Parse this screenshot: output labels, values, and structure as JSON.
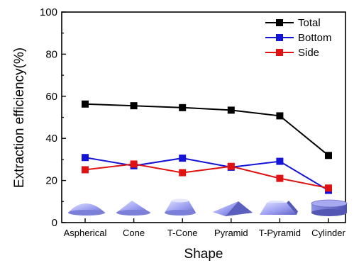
{
  "chart_data": {
    "type": "line",
    "xlabel": "Shape",
    "ylabel": "Extraction efficiency(%)",
    "ylim": [
      0,
      100
    ],
    "yticks": [
      "0",
      "20",
      "40",
      "60",
      "80",
      "100"
    ],
    "categories": [
      "Aspherical",
      "Cone",
      "T-Cone",
      "Pyramid",
      "T-Pyramid",
      "Cylinder"
    ],
    "series": [
      {
        "name": "Total",
        "color": "#000000",
        "values": [
          56.3,
          55.5,
          54.6,
          53.4,
          50.7,
          31.9
        ]
      },
      {
        "name": "Bottom",
        "color": "#1414d8",
        "values": [
          30.9,
          27.0,
          30.6,
          26.3,
          29.1,
          15.3
        ]
      },
      {
        "name": "Side",
        "color": "#e01212",
        "values": [
          25.1,
          27.8,
          23.7,
          26.7,
          21.0,
          16.4
        ]
      }
    ],
    "grid": false,
    "legend_position": "top-right",
    "shape_icons": [
      "aspherical-dome-icon",
      "cone-icon",
      "truncated-cone-icon",
      "pyramid-icon",
      "truncated-pyramid-icon",
      "cylinder-icon"
    ]
  }
}
